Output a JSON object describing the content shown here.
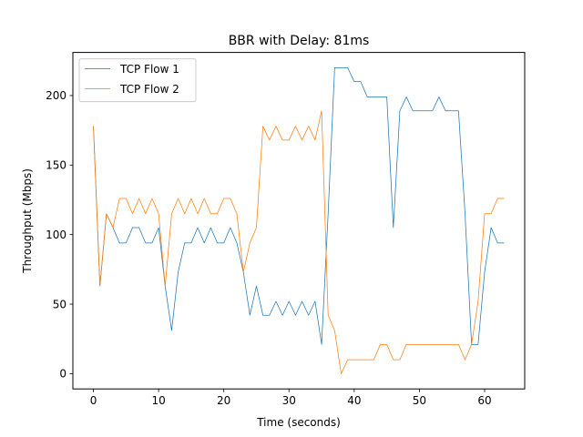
{
  "chart_data": {
    "type": "line",
    "title": "BBR with Delay: 81ms",
    "xlabel": "Time (seconds)",
    "ylabel": "Throughput (Mbps)",
    "xlim": [
      -3.15,
      66.15
    ],
    "ylim": [
      -11,
      231
    ],
    "xticks": [
      0,
      10,
      20,
      30,
      40,
      50,
      60
    ],
    "yticks": [
      0,
      50,
      100,
      150,
      200
    ],
    "grid": false,
    "legend": "top-left",
    "x": [
      0,
      1,
      2,
      3,
      4,
      5,
      6,
      7,
      8,
      9,
      10,
      11,
      12,
      13,
      14,
      15,
      16,
      17,
      18,
      19,
      20,
      21,
      22,
      23,
      24,
      25,
      26,
      27,
      28,
      29,
      30,
      31,
      32,
      33,
      34,
      35,
      36,
      37,
      38,
      39,
      40,
      41,
      42,
      43,
      44,
      45,
      46,
      47,
      48,
      49,
      50,
      51,
      52,
      53,
      54,
      55,
      56,
      57,
      58,
      59,
      60,
      61,
      62,
      63
    ],
    "series": [
      {
        "name": "TCP Flow 1",
        "color": "#1f77b4",
        "values": [
          178,
          63,
          115,
          105,
          94,
          94,
          105,
          105,
          94,
          94,
          105,
          63,
          31,
          73,
          94,
          94,
          105,
          94,
          105,
          94,
          94,
          105,
          94,
          73,
          42,
          63,
          42,
          42,
          52,
          42,
          52,
          42,
          52,
          42,
          52,
          21,
          115,
          220,
          220,
          220,
          210,
          210,
          199,
          199,
          199,
          199,
          105,
          189,
          199,
          189,
          189,
          189,
          189,
          199,
          189,
          189,
          189,
          115,
          21,
          21,
          73,
          105,
          94,
          94
        ]
      },
      {
        "name": "TCP Flow 2",
        "color": "#ff7f0e",
        "values": [
          178,
          63,
          115,
          105,
          126,
          126,
          115,
          126,
          115,
          126,
          115,
          63,
          115,
          126,
          115,
          126,
          115,
          126,
          115,
          115,
          126,
          126,
          115,
          73,
          94,
          105,
          178,
          168,
          178,
          168,
          168,
          178,
          168,
          178,
          168,
          189,
          42,
          31,
          0,
          10,
          10,
          10,
          10,
          10,
          21,
          21,
          10,
          10,
          21,
          21,
          21,
          21,
          21,
          21,
          21,
          21,
          21,
          10,
          21,
          52,
          115,
          115,
          126,
          126
        ]
      }
    ]
  }
}
